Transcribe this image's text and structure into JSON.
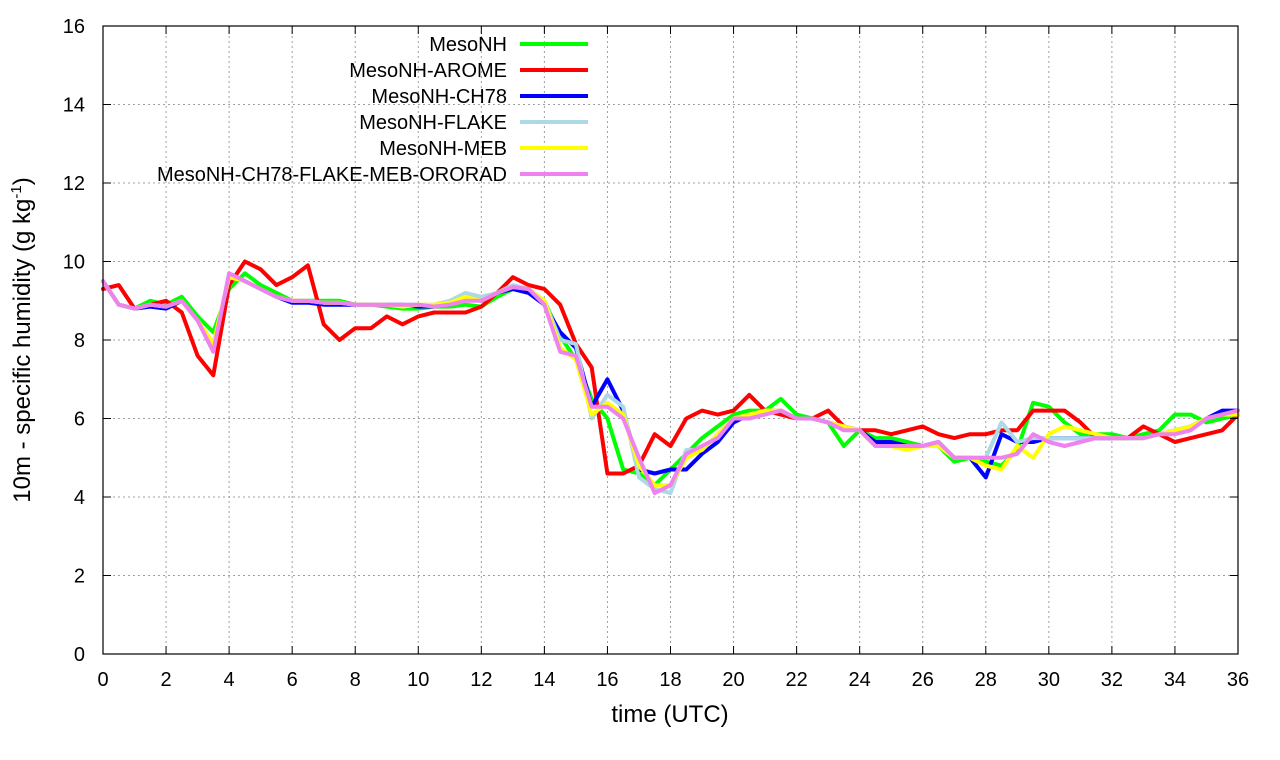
{
  "chart_data": {
    "type": "line",
    "xlabel": "time (UTC)",
    "ylabel": {
      "text": "10m - specific humidity (g kg",
      "sup": "-1",
      "suffix": ")"
    },
    "xlim": [
      0,
      36
    ],
    "ylim": [
      0,
      16
    ],
    "xticks": [
      0,
      2,
      4,
      6,
      8,
      10,
      12,
      14,
      16,
      18,
      20,
      22,
      24,
      26,
      28,
      30,
      32,
      34,
      36
    ],
    "yticks": [
      0,
      2,
      4,
      6,
      8,
      10,
      12,
      14,
      16
    ],
    "grid": true,
    "legend_position": "top-left",
    "x": [
      0,
      0.5,
      1,
      1.5,
      2,
      2.5,
      3,
      3.5,
      4,
      4.5,
      5,
      5.5,
      6,
      6.5,
      7,
      7.5,
      8,
      8.5,
      9,
      9.5,
      10,
      10.5,
      11,
      11.5,
      12,
      12.5,
      13,
      13.5,
      14,
      14.5,
      15,
      15.5,
      16,
      16.5,
      17,
      17.5,
      18,
      18.5,
      19,
      19.5,
      20,
      20.5,
      21,
      21.5,
      22,
      22.5,
      23,
      23.5,
      24,
      24.5,
      25,
      25.5,
      26,
      26.5,
      27,
      27.5,
      28,
      28.5,
      29,
      29.5,
      30,
      30.5,
      31,
      31.5,
      32,
      32.5,
      33,
      33.5,
      34,
      34.5,
      35,
      35.5,
      36
    ],
    "series": [
      {
        "name": "MesoNH",
        "color": "#00ff00",
        "values": [
          9.5,
          8.9,
          8.8,
          9.0,
          8.9,
          9.1,
          8.6,
          8.2,
          9.3,
          9.7,
          9.4,
          9.2,
          9.0,
          9.0,
          9.0,
          9.0,
          8.9,
          8.9,
          8.85,
          8.8,
          8.8,
          8.85,
          8.85,
          8.9,
          8.85,
          9.1,
          9.3,
          9.3,
          9.0,
          8.1,
          7.5,
          6.5,
          6.0,
          4.7,
          4.6,
          4.3,
          4.7,
          5.1,
          5.5,
          5.8,
          6.1,
          6.2,
          6.2,
          6.5,
          6.1,
          6.0,
          5.9,
          5.3,
          5.7,
          5.5,
          5.5,
          5.4,
          5.3,
          5.3,
          4.9,
          5.0,
          4.9,
          4.8,
          5.2,
          6.4,
          6.3,
          5.9,
          5.6,
          5.6,
          5.6,
          5.5,
          5.6,
          5.7,
          6.1,
          6.1,
          5.9,
          6.0,
          6.1
        ]
      },
      {
        "name": "MesoNH-AROME",
        "color": "#ff0000",
        "values": [
          9.3,
          9.4,
          8.8,
          8.9,
          9.0,
          8.7,
          7.6,
          7.1,
          9.4,
          10.0,
          9.8,
          9.4,
          9.6,
          9.9,
          8.4,
          8.0,
          8.3,
          8.3,
          8.6,
          8.4,
          8.6,
          8.7,
          8.7,
          8.7,
          8.85,
          9.2,
          9.6,
          9.4,
          9.3,
          8.9,
          7.9,
          7.3,
          4.6,
          4.6,
          4.8,
          5.6,
          5.3,
          6.0,
          6.2,
          6.1,
          6.2,
          6.6,
          6.2,
          6.1,
          6.0,
          6.0,
          6.2,
          5.8,
          5.7,
          5.7,
          5.6,
          5.7,
          5.8,
          5.6,
          5.5,
          5.6,
          5.6,
          5.7,
          5.7,
          6.2,
          6.2,
          6.2,
          5.9,
          5.5,
          5.5,
          5.5,
          5.8,
          5.6,
          5.4,
          5.5,
          5.6,
          5.7,
          6.1
        ]
      },
      {
        "name": "MesoNH-CH78",
        "color": "#0000ff",
        "values": [
          9.5,
          8.9,
          8.8,
          8.85,
          8.8,
          9.0,
          8.5,
          7.8,
          9.6,
          9.5,
          9.3,
          9.1,
          8.95,
          8.95,
          8.9,
          8.9,
          8.9,
          8.9,
          8.9,
          8.9,
          8.85,
          8.85,
          8.9,
          9.1,
          9.0,
          9.2,
          9.3,
          9.2,
          8.9,
          8.2,
          7.8,
          6.3,
          7.0,
          6.2,
          4.7,
          4.6,
          4.7,
          4.7,
          5.1,
          5.4,
          5.9,
          6.1,
          6.2,
          6.2,
          6.0,
          6.0,
          5.9,
          5.8,
          5.7,
          5.4,
          5.4,
          5.3,
          5.3,
          5.4,
          5.0,
          5.0,
          4.5,
          5.6,
          5.4,
          5.4,
          5.5,
          5.5,
          5.5,
          5.5,
          5.5,
          5.5,
          5.5,
          5.6,
          5.7,
          5.8,
          6.0,
          6.2,
          6.2
        ]
      },
      {
        "name": "MesoNH-FLAKE",
        "color": "#add8e6",
        "values": [
          9.5,
          8.9,
          8.8,
          8.9,
          8.85,
          9.0,
          8.5,
          7.9,
          9.6,
          9.5,
          9.3,
          9.1,
          9.0,
          9.0,
          8.95,
          8.95,
          8.9,
          8.9,
          8.9,
          8.9,
          8.9,
          8.9,
          9.0,
          9.2,
          9.1,
          9.2,
          9.4,
          9.3,
          9.0,
          8.0,
          7.9,
          6.0,
          6.6,
          6.3,
          4.5,
          4.2,
          4.1,
          5.2,
          5.2,
          5.6,
          6.0,
          6.1,
          6.2,
          6.2,
          6.0,
          6.0,
          5.9,
          5.8,
          5.7,
          5.3,
          5.3,
          5.3,
          5.3,
          5.4,
          5.0,
          5.0,
          5.0,
          5.9,
          5.4,
          5.5,
          5.5,
          5.5,
          5.5,
          5.5,
          5.5,
          5.5,
          5.5,
          5.6,
          5.7,
          5.8,
          6.0,
          6.1,
          6.2
        ]
      },
      {
        "name": "MesoNH-MEB",
        "color": "#ffff00",
        "values": [
          9.5,
          8.9,
          8.8,
          8.9,
          8.85,
          9.0,
          8.5,
          7.9,
          9.6,
          9.5,
          9.3,
          9.1,
          9.0,
          9.0,
          8.95,
          8.95,
          8.9,
          8.9,
          8.9,
          8.85,
          8.9,
          8.9,
          8.95,
          9.1,
          9.0,
          9.2,
          9.35,
          9.3,
          9.0,
          7.8,
          7.5,
          6.1,
          6.4,
          6.1,
          4.8,
          4.3,
          4.3,
          5.0,
          5.2,
          5.6,
          6.0,
          6.1,
          6.2,
          6.2,
          6.0,
          6.0,
          5.9,
          5.8,
          5.7,
          5.3,
          5.3,
          5.2,
          5.3,
          5.3,
          5.0,
          5.0,
          4.8,
          4.7,
          5.3,
          5.0,
          5.6,
          5.8,
          5.7,
          5.6,
          5.5,
          5.5,
          5.5,
          5.6,
          5.7,
          5.8,
          6.0,
          6.1,
          6.1
        ]
      },
      {
        "name": "MesoNH-CH78-FLAKE-MEB-ORORAD",
        "color": "#ee82ee",
        "values": [
          9.5,
          8.9,
          8.8,
          8.9,
          8.85,
          9.0,
          8.5,
          7.7,
          9.7,
          9.5,
          9.3,
          9.1,
          9.0,
          9.0,
          8.95,
          8.95,
          8.9,
          8.9,
          8.9,
          8.9,
          8.9,
          8.85,
          8.9,
          9.0,
          9.0,
          9.2,
          9.35,
          9.3,
          8.9,
          7.7,
          7.6,
          6.3,
          6.3,
          6.0,
          5.0,
          4.1,
          4.3,
          5.1,
          5.3,
          5.5,
          6.0,
          6.0,
          6.1,
          6.2,
          6.0,
          6.0,
          5.9,
          5.7,
          5.7,
          5.3,
          5.3,
          5.3,
          5.3,
          5.4,
          5.0,
          5.0,
          5.0,
          5.0,
          5.1,
          5.6,
          5.4,
          5.3,
          5.4,
          5.5,
          5.5,
          5.5,
          5.5,
          5.6,
          5.6,
          5.7,
          6.0,
          6.1,
          6.2
        ]
      }
    ]
  }
}
